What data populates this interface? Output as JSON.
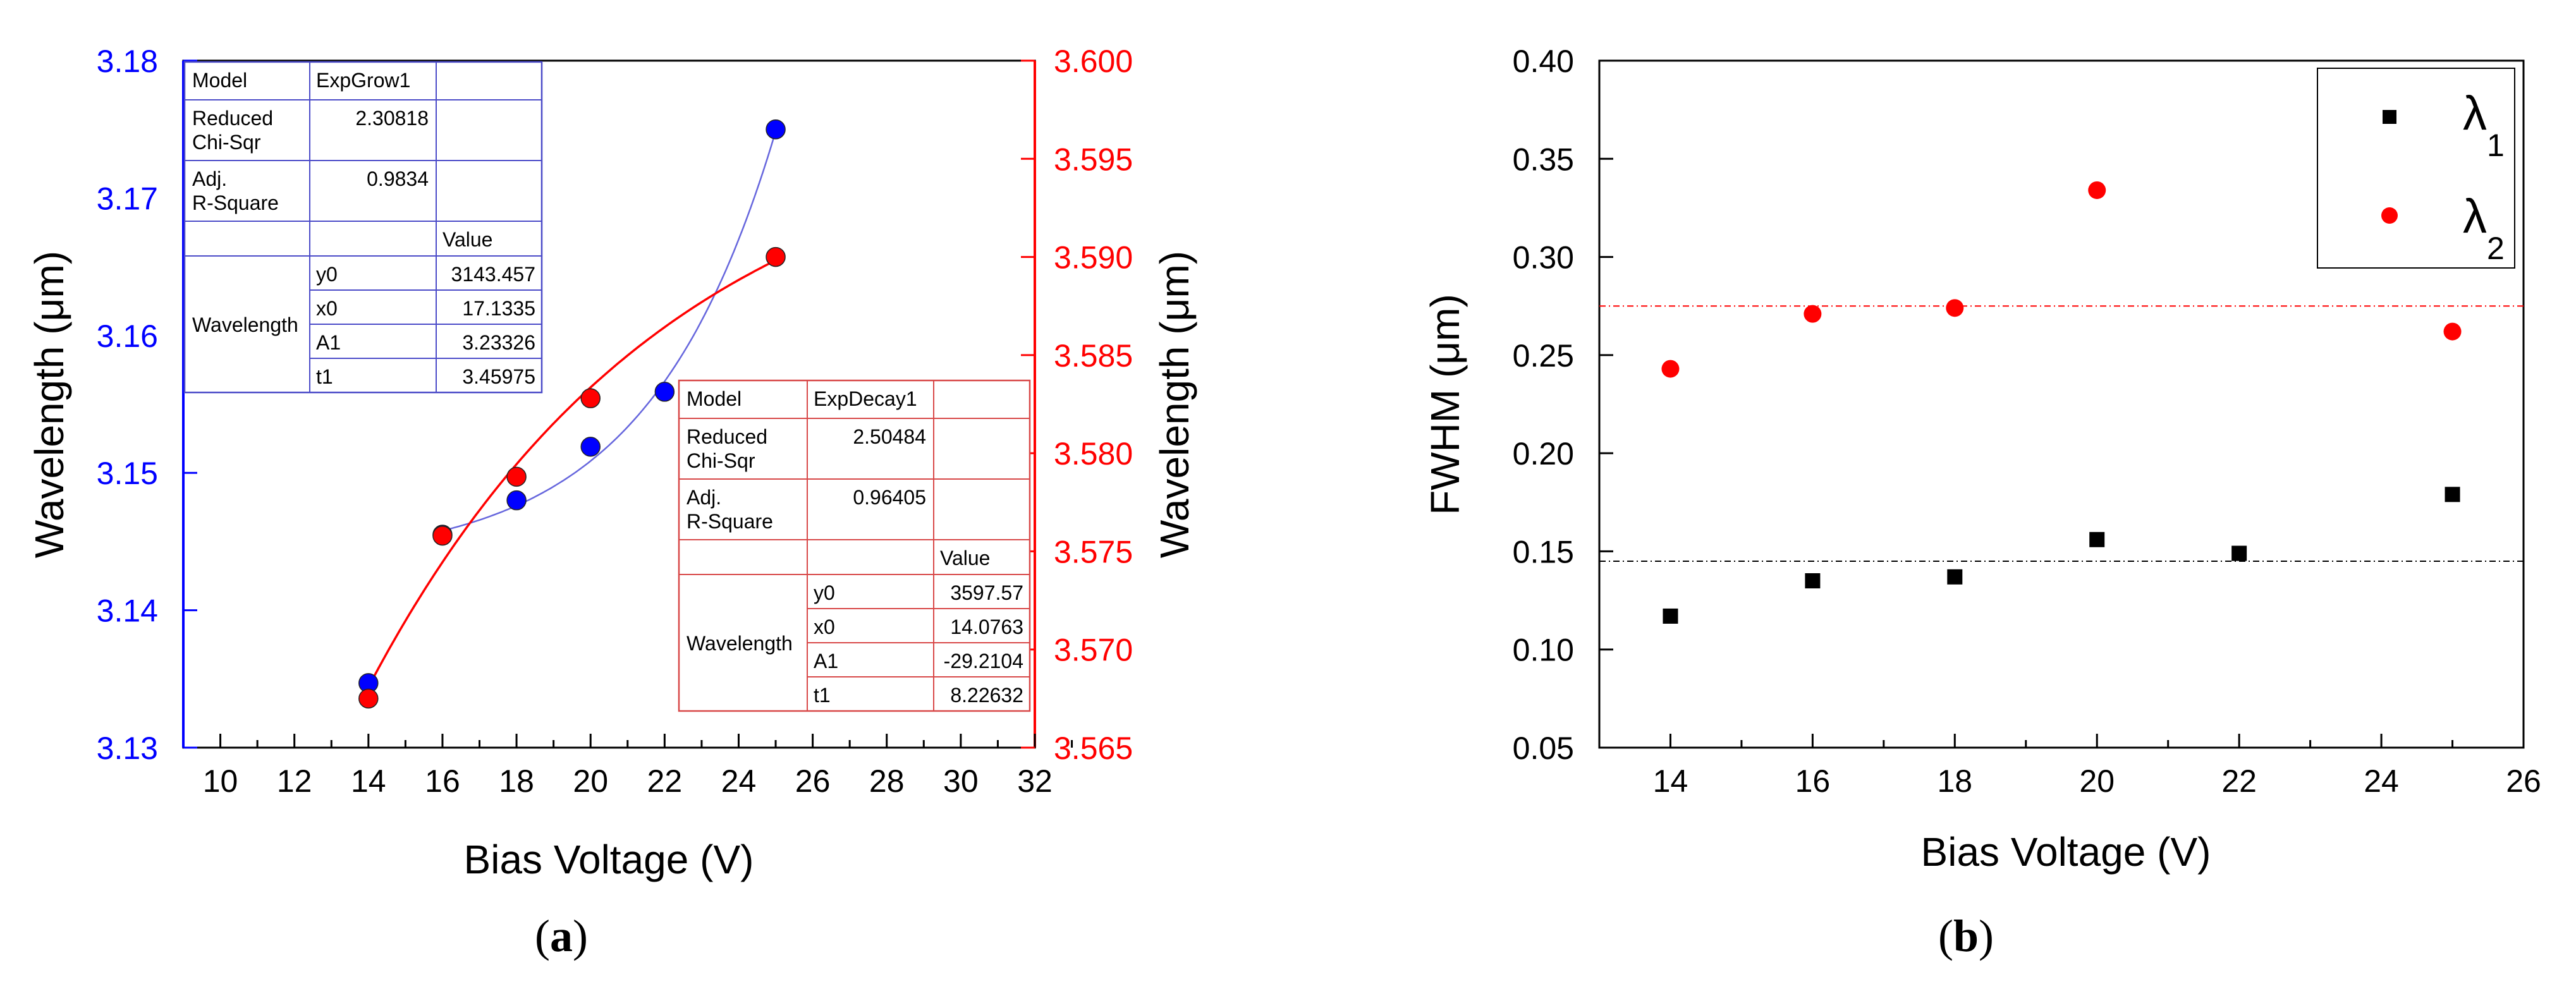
{
  "panels": {
    "a": {
      "label_pre": "(",
      "label_letter": "a",
      "label_post": ")"
    },
    "b": {
      "label_pre": "(",
      "label_letter": "b",
      "label_post": ")"
    }
  },
  "colors": {
    "blue": "#0000ff",
    "red": "#ff0000",
    "black": "#000000",
    "fit_blue": "#6666dd",
    "fit_red": "#ff0000"
  },
  "chart_data": [
    {
      "type": "scatter",
      "panel": "a",
      "xlabel": "Bias Voltage (V)",
      "ylabel_left": "Wavelength (μm)",
      "ylabel_right": "Wavelength (μm)",
      "xlim": [
        9,
        32
      ],
      "xticks": [
        "10",
        "12",
        "14",
        "16",
        "18",
        "20",
        "22",
        "24",
        "26",
        "28",
        "30",
        "32"
      ],
      "ylim_left": [
        3.13,
        3.18
      ],
      "yticks_left": [
        "3.13",
        "3.14",
        "3.15",
        "3.16",
        "3.17",
        "3.18"
      ],
      "ylim_right": [
        3.565,
        3.6
      ],
      "yticks_right": [
        "3.565",
        "3.570",
        "3.575",
        "3.580",
        "3.585",
        "3.590",
        "3.595",
        "3.600"
      ],
      "series": [
        {
          "axis": "left",
          "color": "#0000ff",
          "x": [
            14,
            16,
            18,
            20,
            22,
            25
          ],
          "y": [
            3.1347,
            3.1455,
            3.148,
            3.1519,
            3.1559,
            3.175
          ]
        },
        {
          "axis": "right",
          "color": "#ff0000",
          "x": [
            14,
            16,
            18,
            20,
            25
          ],
          "y": [
            3.5675,
            3.5758,
            3.5788,
            3.5828,
            3.59
          ]
        }
      ],
      "fits": [
        {
          "axis": "left",
          "model": "ExpGrow1",
          "y0": 3143.457,
          "x0": 17.1335,
          "A1": 3.23326,
          "t1": 3.45975,
          "x_range": [
            16,
            25
          ]
        },
        {
          "axis": "right",
          "model": "ExpDecay1",
          "y0": 3597.57,
          "x0": 14.0763,
          "A1": -29.2104,
          "t1": 8.22632,
          "x_range": [
            14,
            25
          ]
        }
      ],
      "fit_tables": [
        {
          "color": "#4b4bc8",
          "rows": [
            [
              "Model",
              "ExpGrow1",
              ""
            ],
            [
              "Reduced\nChi-Sqr",
              "2.30818",
              ""
            ],
            [
              "Adj.\nR-Square",
              "0.9834",
              ""
            ],
            [
              "",
              "",
              "Value"
            ],
            [
              "Wavelength",
              "y0",
              "3143.457"
            ],
            [
              "",
              "x0",
              "17.1335"
            ],
            [
              "",
              "A1",
              "3.23326"
            ],
            [
              "",
              "t1",
              "3.45975"
            ]
          ]
        },
        {
          "color": "#d84848",
          "rows": [
            [
              "Model",
              "ExpDecay1",
              ""
            ],
            [
              "Reduced\nChi-Sqr",
              "2.50484",
              ""
            ],
            [
              "Adj.\nR-Square",
              "0.96405",
              ""
            ],
            [
              "",
              "",
              "Value"
            ],
            [
              "Wavelength",
              "y0",
              "3597.57"
            ],
            [
              "",
              "x0",
              "14.0763"
            ],
            [
              "",
              "A1",
              "-29.2104"
            ],
            [
              "",
              "t1",
              "8.22632"
            ]
          ]
        }
      ]
    },
    {
      "type": "scatter",
      "panel": "b",
      "xlabel": "Bias Voltage (V)",
      "ylabel": "FWHM (μm)",
      "xlim": [
        13,
        26
      ],
      "xticks": [
        "14",
        "16",
        "18",
        "20",
        "22",
        "24",
        "26"
      ],
      "ylim": [
        0.05,
        0.4
      ],
      "yticks": [
        "0.05",
        "0.10",
        "0.15",
        "0.20",
        "0.25",
        "0.30",
        "0.35",
        "0.40"
      ],
      "legend_position": "top-right",
      "series": [
        {
          "name": "λ",
          "subscript": "1",
          "marker": "square",
          "color": "#000000",
          "x": [
            14,
            16,
            18,
            20,
            22,
            25
          ],
          "y": [
            0.117,
            0.135,
            0.137,
            0.156,
            0.149,
            0.179
          ],
          "mean_line": 0.145
        },
        {
          "name": "λ",
          "subscript": "2",
          "marker": "circle",
          "color": "#ff0000",
          "x": [
            14,
            16,
            18,
            20,
            25
          ],
          "y": [
            0.243,
            0.271,
            0.274,
            0.334,
            0.262
          ],
          "mean_line": 0.275
        }
      ]
    }
  ]
}
